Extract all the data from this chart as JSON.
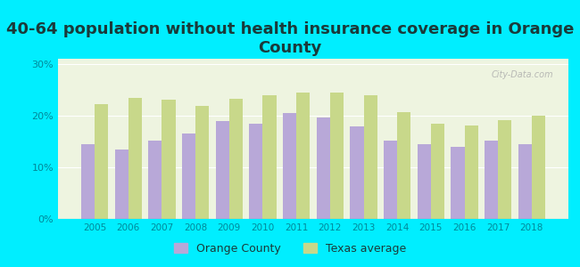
{
  "title": "40-64 population without health insurance coverage in Orange\nCounty",
  "years": [
    2005,
    2006,
    2007,
    2008,
    2009,
    2010,
    2011,
    2012,
    2013,
    2014,
    2015,
    2016,
    2017,
    2018
  ],
  "orange_county": [
    14.5,
    13.5,
    15.2,
    16.5,
    19.0,
    18.5,
    20.5,
    19.7,
    17.9,
    15.2,
    14.5,
    13.9,
    15.2,
    14.5
  ],
  "texas_avg": [
    22.3,
    23.5,
    23.1,
    21.8,
    23.2,
    24.0,
    24.5,
    24.5,
    24.0,
    20.7,
    18.4,
    18.1,
    19.2,
    19.9
  ],
  "bar_color_county": "#b8a8d8",
  "bar_color_texas": "#c8d88a",
  "background_color": "#00eeff",
  "plot_bg_top": "#f5f8ee",
  "plot_bg_bottom": "#e8f0d8",
  "yticks": [
    0,
    10,
    20,
    30
  ],
  "ylim": [
    0,
    31
  ],
  "legend_county": "Orange County",
  "legend_texas": "Texas average",
  "title_fontsize": 13,
  "title_color": "#1a3a3a",
  "tick_color": "#008899",
  "watermark": "City-Data.com"
}
